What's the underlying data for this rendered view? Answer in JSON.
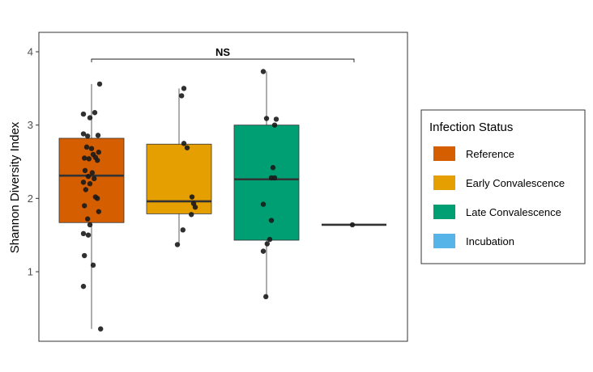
{
  "chart_data": {
    "type": "boxplot",
    "ylabel": "Shannon Diversity Index",
    "xlabel": "",
    "ylim": [
      0.1,
      4.3
    ],
    "yticks": [
      1,
      2,
      3,
      4
    ],
    "significance": {
      "label": "NS",
      "from_group": 0,
      "to_group": 3,
      "y": 3.9
    },
    "legend": {
      "title": "Infection Status",
      "placement": "right",
      "entries": [
        {
          "label": "Reference",
          "color": "#D55E00"
        },
        {
          "label": "Early Convalescence",
          "color": "#E69F00"
        },
        {
          "label": "Late Convalescence",
          "color": "#009E73"
        },
        {
          "label": "Incubation",
          "color": "#56B4E9"
        }
      ]
    },
    "groups": [
      {
        "name": "Reference",
        "color": "#D55E00",
        "q1": 1.67,
        "median": 2.31,
        "q3": 2.82,
        "whisker_low": 0.22,
        "whisker_high": 3.56,
        "points": [
          [
            -0.25,
            3.15
          ],
          [
            -0.05,
            3.1
          ],
          [
            0.1,
            3.17
          ],
          [
            0.25,
            3.56
          ],
          [
            -0.25,
            2.88
          ],
          [
            -0.12,
            2.85
          ],
          [
            0.2,
            2.86
          ],
          [
            -0.15,
            2.7
          ],
          [
            0.0,
            2.68
          ],
          [
            0.05,
            2.6
          ],
          [
            0.22,
            2.63
          ],
          [
            -0.22,
            2.55
          ],
          [
            -0.08,
            2.54
          ],
          [
            0.12,
            2.56
          ],
          [
            0.18,
            2.52
          ],
          [
            -0.2,
            2.38
          ],
          [
            0.02,
            2.35
          ],
          [
            -0.1,
            2.3
          ],
          [
            -0.25,
            2.22
          ],
          [
            -0.05,
            2.2
          ],
          [
            0.08,
            2.27
          ],
          [
            -0.18,
            2.12
          ],
          [
            0.12,
            2.02
          ],
          [
            0.18,
            2.0
          ],
          [
            -0.22,
            1.9
          ],
          [
            0.22,
            1.82
          ],
          [
            -0.12,
            1.72
          ],
          [
            -0.05,
            1.64
          ],
          [
            -0.25,
            1.52
          ],
          [
            -0.1,
            1.5
          ],
          [
            -0.22,
            1.22
          ],
          [
            0.05,
            1.09
          ],
          [
            -0.25,
            0.8
          ],
          [
            0.28,
            0.22
          ]
        ]
      },
      {
        "name": "Early Convalescence",
        "color": "#E69F00",
        "q1": 1.79,
        "median": 1.96,
        "q3": 2.74,
        "whisker_low": 1.38,
        "whisker_high": 3.5,
        "points": [
          [
            0.15,
            3.5
          ],
          [
            0.08,
            3.4
          ],
          [
            0.15,
            2.75
          ],
          [
            0.25,
            2.69
          ],
          [
            0.4,
            2.02
          ],
          [
            0.45,
            1.93
          ],
          [
            0.5,
            1.88
          ],
          [
            0.38,
            1.78
          ],
          [
            0.12,
            1.57
          ],
          [
            -0.05,
            1.37
          ]
        ]
      },
      {
        "name": "Late Convalescence",
        "color": "#009E73",
        "q1": 1.43,
        "median": 2.26,
        "q3": 3.0,
        "whisker_low": 0.65,
        "whisker_high": 3.73,
        "points": [
          [
            -0.1,
            3.73
          ],
          [
            0.0,
            3.09
          ],
          [
            0.3,
            3.08
          ],
          [
            0.25,
            3.0
          ],
          [
            0.2,
            2.42
          ],
          [
            0.15,
            2.28
          ],
          [
            0.25,
            2.28
          ],
          [
            -0.1,
            1.92
          ],
          [
            0.15,
            1.7
          ],
          [
            0.1,
            1.44
          ],
          [
            0.02,
            1.38
          ],
          [
            -0.1,
            1.28
          ],
          [
            -0.02,
            0.66
          ]
        ]
      },
      {
        "name": "Incubation",
        "color": "#56B4E9",
        "q1": 1.64,
        "median": 1.64,
        "q3": 1.64,
        "whisker_low": 1.64,
        "whisker_high": 1.64,
        "points": [
          [
            -0.05,
            1.64
          ]
        ]
      }
    ]
  }
}
